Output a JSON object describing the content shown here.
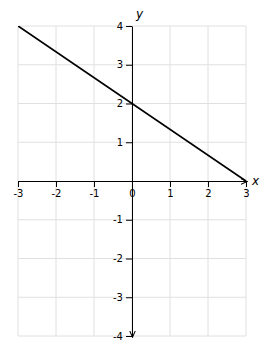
{
  "chart_data": {
    "type": "line",
    "x": [
      -3,
      3
    ],
    "values": [
      4,
      0
    ],
    "color": "#000000",
    "xlim": [
      -3,
      3
    ],
    "ylim": [
      -4,
      4
    ],
    "xticks": [
      -3,
      -2,
      -1,
      0,
      1,
      2,
      3
    ],
    "yticks": [
      -4,
      -3,
      -2,
      -1,
      1,
      2,
      3,
      4
    ],
    "xlabel": "x",
    "ylabel": "y",
    "grid": true
  }
}
